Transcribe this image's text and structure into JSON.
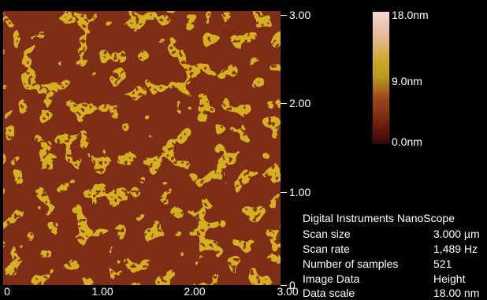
{
  "colors": {
    "background": "#000000",
    "text": "#ffffff",
    "domain_fill": "#7e2e16",
    "boundary_fill": "#d4b11e"
  },
  "image": {
    "type": "afm-height-map",
    "description_key": "nanoscale-domains"
  },
  "axes": {
    "y_ticks": [
      "3.00",
      "2.00",
      "1.00",
      "0"
    ],
    "x_ticks": [
      "0",
      "1.00",
      "2.00",
      "3.00"
    ]
  },
  "colorbar": {
    "max_label": "18.0nm",
    "mid_label": "9.0nm",
    "min_label": "0.0nm"
  },
  "info": {
    "title": "Digital Instruments NanoScope",
    "rows": [
      {
        "label": "Scan size",
        "value": "3.000 µm"
      },
      {
        "label": "Scan rate",
        "value": "1,489 Hz"
      },
      {
        "label": "Number of samples",
        "value": "521"
      },
      {
        "label": "Image Data",
        "value": "Height"
      },
      {
        "label": "Data scale",
        "value": "18.00 nm"
      }
    ]
  }
}
